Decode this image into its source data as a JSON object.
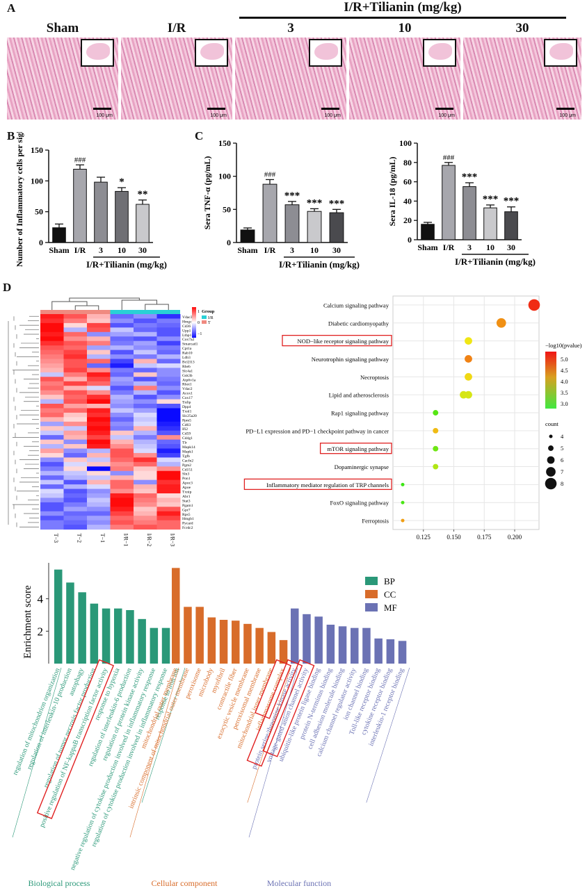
{
  "panel_labels": {
    "A": "A",
    "B": "B",
    "C": "C",
    "D": "D"
  },
  "panel_a": {
    "treatment_header": "I/R+Tilianin (mg/kg)",
    "groups": [
      "Sham",
      "I/R",
      "3",
      "10",
      "30"
    ],
    "scale_label": "100 μm"
  },
  "chart_data": [
    {
      "id": "B",
      "type": "bar",
      "categories": [
        "Sham",
        "I/R",
        "3",
        "10",
        "30"
      ],
      "values": [
        24,
        119,
        98,
        83,
        62
      ],
      "errors": [
        6,
        7,
        8,
        6,
        7
      ],
      "significance": [
        "",
        "###",
        "",
        "*",
        "**"
      ],
      "colors": [
        "#111111",
        "#a7a7ad",
        "#8d8d93",
        "#6f6f74",
        "#c9c9cc"
      ],
      "ylabel": "Number of Inflammatory cells per sight",
      "xgroup_label": "I/R+Tilianin (mg/kg)",
      "ylim": [
        0,
        150
      ],
      "yticks": [
        0,
        50,
        100,
        150
      ]
    },
    {
      "id": "C1",
      "type": "bar",
      "categories": [
        "Sham",
        "I/R",
        "3",
        "10",
        "30"
      ],
      "values": [
        19,
        88,
        57,
        47,
        45
      ],
      "errors": [
        3,
        7,
        5,
        4,
        5
      ],
      "significance": [
        "",
        "###",
        "***",
        "***",
        "***"
      ],
      "colors": [
        "#111111",
        "#a7a7ad",
        "#8d8d93",
        "#c9c9cc",
        "#4a4a4e"
      ],
      "ylabel": "Sera TNF-α (pg/mL)",
      "xgroup_label": "I/R+Tilianin (mg/kg)",
      "ylim": [
        0,
        150
      ],
      "yticks": [
        0,
        50,
        100,
        150
      ]
    },
    {
      "id": "C2",
      "type": "bar",
      "categories": [
        "Sham",
        "I/R",
        "3",
        "10",
        "30"
      ],
      "values": [
        16,
        77,
        55,
        33,
        29
      ],
      "errors": [
        2,
        3,
        4,
        3,
        5
      ],
      "significance": [
        "",
        "###",
        "***",
        "***",
        "***"
      ],
      "colors": [
        "#111111",
        "#a7a7ad",
        "#8d8d93",
        "#c9c9cc",
        "#4a4a4e"
      ],
      "ylabel": "Sera IL-18 (pg/mL)",
      "xgroup_label": "I/R+Tilianin (mg/kg)",
      "ylim": [
        0,
        100
      ],
      "yticks": [
        0,
        20,
        40,
        60,
        80,
        100
      ]
    },
    {
      "id": "heatmap",
      "type": "heatmap",
      "columns": [
        "T−3",
        "T−2",
        "T−1",
        "I/R−1",
        "I/R−2",
        "I/R−3"
      ],
      "column_groups": [
        "T",
        "T",
        "T",
        "I/R",
        "I/R",
        "I/R"
      ],
      "group_colors": {
        "I/R": "#29d0d6",
        "T": "#f08a80"
      },
      "legend_title": "Group",
      "legend_items": [
        "I/R",
        "T"
      ],
      "scale_ticks": [
        "1",
        "0",
        "−1"
      ],
      "genes": [
        "Vdac3",
        "Hmgcl",
        "Cd36",
        "Upp1",
        "Ltbp1",
        "Cox7a2",
        "Smarcad1",
        "Cpt1a",
        "Rab10",
        "Ldb3",
        "Bcl2l13",
        "Rheb",
        "Slc4a1",
        "Gsk3b",
        "Atp6v1a",
        "Rhot1",
        "Vdac2",
        "Acox1",
        "Cox17",
        "Tnfip",
        "Dpp4",
        "Txnl1",
        "Slc25a20",
        "Ppm5",
        "Cd63",
        "Ifi2",
        "Cd59",
        "Cd4g1",
        "Tlr",
        "Mapk14",
        "Mapk1",
        "Tgfb",
        "Cacfn2",
        "Pgm2",
        "Cd151",
        "Sln3",
        "Pon1",
        "Apoc3",
        "Apoe",
        "Txnip",
        "Abr1",
        "Stat3",
        "Pgam1",
        "Gpr7",
        "Rps5",
        "Hmgb1",
        "Pycard",
        "Fcrdc2"
      ],
      "values": [
        [
          1.2,
          0.9,
          0.4,
          -0.8,
          -0.6,
          -1.1
        ],
        [
          1.1,
          0.7,
          0.3,
          -0.6,
          -0.9,
          -0.7
        ],
        [
          1.3,
          0.2,
          1.0,
          -0.9,
          -0.7,
          -0.8
        ],
        [
          1.4,
          -0.4,
          0.9,
          -0.3,
          -0.8,
          -0.9
        ],
        [
          1.2,
          0.8,
          -0.6,
          -0.5,
          -0.4,
          -0.9
        ],
        [
          1.3,
          0.6,
          0.4,
          -0.8,
          -0.9,
          -0.6
        ],
        [
          1.1,
          0.9,
          0.7,
          -0.7,
          -0.5,
          -1.0
        ],
        [
          0.9,
          0.8,
          -0.5,
          -0.4,
          -0.6,
          -0.7
        ],
        [
          0.8,
          1.0,
          0.3,
          -0.9,
          -0.3,
          -0.8
        ],
        [
          0.7,
          1.1,
          -0.4,
          -0.6,
          -0.7,
          -0.4
        ],
        [
          0.6,
          0.9,
          0.8,
          -1.0,
          0.4,
          -0.8
        ],
        [
          0.5,
          0.9,
          -0.8,
          -1.2,
          -0.3,
          -0.2
        ],
        [
          0.4,
          1.0,
          0.6,
          -0.7,
          -0.8,
          -0.6
        ],
        [
          -0.3,
          0.7,
          1.2,
          -0.8,
          0.3,
          -0.6
        ],
        [
          0.9,
          0.4,
          1.0,
          -0.5,
          -0.9,
          -0.7
        ],
        [
          0.7,
          1.0,
          0.8,
          -0.6,
          -0.4,
          -0.8
        ],
        [
          0.8,
          0.4,
          -0.2,
          -0.9,
          0.7,
          -0.6
        ],
        [
          0.6,
          0.9,
          0.6,
          -0.7,
          -0.4,
          -0.9
        ],
        [
          0.3,
          0.8,
          1.1,
          -0.4,
          -0.9,
          -0.6
        ],
        [
          -0.4,
          0.9,
          1.3,
          -0.5,
          -0.6,
          0.2
        ],
        [
          0.9,
          0.5,
          0.4,
          -0.6,
          -0.8,
          -0.9
        ],
        [
          0.7,
          0.8,
          1.2,
          -0.3,
          -0.5,
          -1.3
        ],
        [
          0.8,
          0.3,
          1.1,
          -0.6,
          -0.2,
          -1.3
        ],
        [
          0.4,
          0.2,
          1.3,
          -0.8,
          -0.3,
          -1.3
        ],
        [
          -0.5,
          0.6,
          1.2,
          -0.6,
          -0.2,
          -1.2
        ],
        [
          0.3,
          -0.3,
          1.3,
          -0.7,
          0.4,
          -1.1
        ],
        [
          -0.3,
          0.5,
          1.2,
          0.3,
          -0.4,
          -0.9
        ],
        [
          -0.8,
          0.4,
          1.0,
          -0.3,
          -0.7,
          0.6
        ],
        [
          0.3,
          -0.6,
          1.3,
          0.4,
          -0.4,
          -0.8
        ],
        [
          -0.4,
          0.3,
          1.2,
          0.6,
          -0.3,
          -0.9
        ],
        [
          0.5,
          -0.6,
          -0.4,
          0.9,
          -0.2,
          -1.2
        ],
        [
          0.2,
          -0.8,
          0.4,
          0.9,
          0.6,
          -1.0
        ],
        [
          -0.6,
          0.3,
          -0.3,
          0.8,
          1.1,
          -0.2
        ],
        [
          -0.9,
          -0.2,
          0.3,
          0.6,
          0.8,
          -0.4
        ],
        [
          -0.7,
          0.2,
          -1.3,
          0.7,
          0.3,
          0.6
        ],
        [
          -0.4,
          -0.3,
          0.2,
          -0.6,
          0.2,
          1.3
        ],
        [
          -0.8,
          -0.4,
          -0.3,
          0.4,
          0.2,
          1.3
        ],
        [
          -0.3,
          -0.9,
          0.4,
          0.8,
          -0.6,
          1.1
        ],
        [
          -0.8,
          -0.4,
          -0.2,
          0.8,
          0.4,
          1.2
        ],
        [
          -0.2,
          -0.9,
          -0.6,
          0.6,
          0.3,
          1.2
        ],
        [
          -0.3,
          -0.8,
          -0.5,
          1.2,
          0.8,
          0.2
        ],
        [
          -0.6,
          -0.9,
          -0.3,
          1.3,
          0.7,
          0.4
        ],
        [
          -0.9,
          -0.7,
          -0.4,
          1.3,
          0.6,
          0.3
        ],
        [
          -0.9,
          -0.5,
          -0.6,
          1.2,
          0.3,
          0.9
        ],
        [
          -0.6,
          -0.8,
          -0.8,
          1.0,
          0.4,
          1.2
        ],
        [
          -0.9,
          -0.7,
          -0.5,
          0.8,
          0.6,
          1.0
        ],
        [
          -0.7,
          -0.8,
          -0.6,
          0.9,
          0.7,
          0.8
        ],
        [
          -0.7,
          -0.9,
          -0.4,
          0.7,
          0.9,
          0.8
        ]
      ]
    },
    {
      "id": "kegg_dotplot",
      "type": "scatter",
      "pathways": [
        "Calcium signaling pathway",
        "Diabetic cardiomyopathy",
        "NOD−like receptor signaling pathway",
        "Neurotrophin signaling pathway",
        "Necroptosis",
        "Lipid and atherosclerosis",
        "Rap1 signaling pathway",
        "PD−L1 expression and PD−1 checkpoint pathway in cancer",
        "mTOR signaling pathway",
        "Dopaminergic synapse",
        "Inflammatory mediator regulation of TRP channels",
        "FoxO signaling pathway",
        "Ferroptosis"
      ],
      "gene_ratio": [
        0.216,
        0.189,
        0.162,
        0.162,
        0.162,
        0.162,
        0.135,
        0.135,
        0.135,
        0.135,
        0.108,
        0.108,
        0.108
      ],
      "extra_point_ratio": [
        null,
        null,
        null,
        null,
        null,
        0.158,
        null,
        null,
        null,
        null,
        null,
        null,
        null
      ],
      "neg_log10_pvalue": [
        5.4,
        4.7,
        4.1,
        4.8,
        4.2,
        3.9,
        2.9,
        4.4,
        3.1,
        3.6,
        2.7,
        2.8,
        4.6
      ],
      "count": [
        8,
        7,
        6,
        6,
        6,
        6,
        5,
        5,
        5,
        5,
        4,
        4,
        4
      ],
      "highlighted": [
        false,
        false,
        true,
        false,
        false,
        false,
        false,
        false,
        true,
        false,
        true,
        false,
        false
      ],
      "xticks": [
        0.125,
        0.15,
        0.175,
        0.2
      ],
      "xlim": [
        0.1,
        0.22
      ],
      "color_legend_title": "−log10(pvalue)",
      "color_ticks": [
        "5.0",
        "4.5",
        "4.0",
        "3.5",
        "3.0"
      ],
      "size_legend_title": "count",
      "size_ticks": [
        4,
        5,
        6,
        7,
        8
      ]
    },
    {
      "id": "go_enrichment",
      "type": "bar",
      "ylabel": "Enrichment score",
      "ylim": [
        0,
        6
      ],
      "yticks": [
        2,
        4
      ],
      "series": [
        {
          "name": "BP",
          "color": "#2a9878",
          "category_label": "Biological process",
          "terms": [
            "regulation of mitochondrion organization",
            "regulation of interleukin-10 production",
            "autophagy",
            "regulation of tumor necrosis factor production",
            "positive regulation of NF-kappaB transcription factor activity",
            "response to hypoxia",
            "regulation of interleukin-6 production",
            "regulation of protein kinase activity",
            "negative regulation of cytokine production involved in inflammatory response",
            "regulation of cytokine production involved in inflammatory response",
            "response to iron ion"
          ],
          "values": [
            5.8,
            5.0,
            4.4,
            3.7,
            3.4,
            3.4,
            3.3,
            2.75,
            2.2,
            2.2,
            null
          ],
          "highlighted": [
            false,
            false,
            false,
            false,
            true,
            false,
            false,
            false,
            false,
            false,
            false
          ]
        },
        {
          "name": "CC",
          "color": "#d86c2a",
          "category_label": "Cellular component",
          "terms": [
            "mitochondrial outer membrane",
            "intrinsic component of mitochondrial outer membrane",
            "peroxisome",
            "microbody",
            "myofibril",
            "contractile fiber",
            "exocytic vesicle membrane",
            "peroxisomal membrane",
            "mitochondrial inner membrane",
            "inflammasome complex"
          ],
          "values": [
            5.9,
            3.5,
            3.5,
            2.85,
            2.7,
            2.65,
            2.45,
            2.2,
            1.95,
            1.45
          ],
          "highlighted": [
            false,
            false,
            false,
            false,
            false,
            false,
            false,
            false,
            false,
            true
          ]
        },
        {
          "name": "MF",
          "color": "#6b72b4",
          "category_label": "Molecular function",
          "terms": [
            "protein serine/threonine kinase activity",
            "voltage-gated anion channel activity",
            "ubiquitin-like protein ligase binding",
            "protein N-terminus binding",
            "cell adhesion molecule binding",
            "calcium channel regulator activity",
            "ion channel binding",
            "Toll-like receptor binding",
            "cytokine receptor binding",
            "interleukin-1 receptor binding"
          ],
          "values": [
            3.4,
            3.05,
            2.9,
            2.4,
            2.3,
            2.2,
            2.2,
            1.55,
            1.5,
            1.4
          ],
          "highlighted": [
            true,
            true,
            false,
            false,
            false,
            false,
            false,
            false,
            false,
            false
          ]
        }
      ]
    }
  ]
}
